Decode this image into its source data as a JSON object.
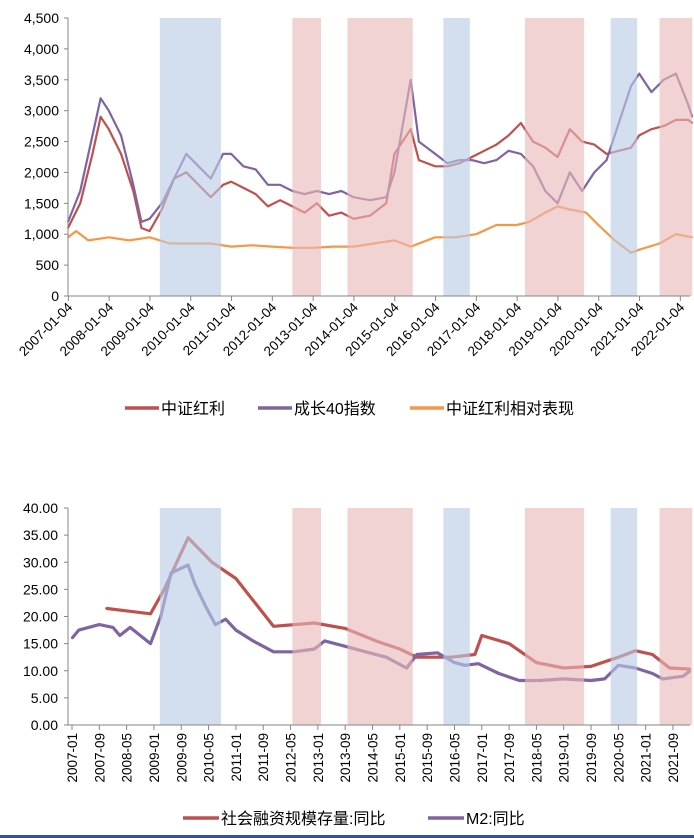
{
  "chart_data": [
    {
      "type": "line",
      "x_type": "date",
      "ylim": [
        0,
        4500
      ],
      "yticks": [
        "0",
        "500",
        "1,000",
        "1,500",
        "2,000",
        "2,500",
        "3,000",
        "3,500",
        "4,000",
        "4,500"
      ],
      "xticks": [
        "2007-01-04",
        "2008-01-04",
        "2009-01-04",
        "2010-01-04",
        "2011-01-04",
        "2012-01-04",
        "2013-01-04",
        "2014-01-04",
        "2015-01-04",
        "2016-01-04",
        "2017-01-04",
        "2018-01-04",
        "2019-01-04",
        "2020-01-04",
        "2021-01-04",
        "2022-01-04"
      ],
      "grid": false,
      "legend": "bottom",
      "shaded_periods": [
        {
          "from": 2009.25,
          "to": 2010.75,
          "color": "#b8cce4"
        },
        {
          "from": 2012.5,
          "to": 2013.2,
          "color": "#e6b8b7"
        },
        {
          "from": 2013.85,
          "to": 2015.45,
          "color": "#e6b8b7"
        },
        {
          "from": 2016.2,
          "to": 2016.85,
          "color": "#b8cce4"
        },
        {
          "from": 2018.2,
          "to": 2019.65,
          "color": "#e6b8b7"
        },
        {
          "from": 2020.3,
          "to": 2020.95,
          "color": "#b8cce4"
        },
        {
          "from": 2021.5,
          "to": 2022.3,
          "color": "#e6b8b7"
        }
      ],
      "series": [
        {
          "name": "中证红利",
          "color": "#c0504d",
          "x": [
            2007.0,
            2007.3,
            2007.6,
            2007.8,
            2008.0,
            2008.3,
            2008.6,
            2008.8,
            2009.0,
            2009.3,
            2009.6,
            2009.9,
            2010.2,
            2010.5,
            2010.8,
            2011.0,
            2011.3,
            2011.6,
            2011.9,
            2012.2,
            2012.5,
            2012.8,
            2013.1,
            2013.4,
            2013.7,
            2014.0,
            2014.4,
            2014.8,
            2015.0,
            2015.4,
            2015.6,
            2016.0,
            2016.3,
            2016.6,
            2016.9,
            2017.2,
            2017.5,
            2017.8,
            2018.1,
            2018.4,
            2018.7,
            2019.0,
            2019.3,
            2019.6,
            2019.9,
            2020.2,
            2020.5,
            2020.8,
            2021.0,
            2021.3,
            2021.6,
            2021.9,
            2022.2,
            2022.3
          ],
          "y": [
            1100,
            1500,
            2300,
            2900,
            2700,
            2300,
            1700,
            1100,
            1050,
            1400,
            1900,
            2000,
            1800,
            1600,
            1800,
            1850,
            1750,
            1650,
            1450,
            1550,
            1450,
            1350,
            1500,
            1300,
            1350,
            1250,
            1300,
            1500,
            2300,
            2700,
            2200,
            2100,
            2100,
            2150,
            2250,
            2350,
            2450,
            2600,
            2800,
            2500,
            2400,
            2250,
            2700,
            2500,
            2450,
            2300,
            2350,
            2400,
            2600,
            2700,
            2750,
            2850,
            2850,
            2800
          ]
        },
        {
          "name": "成长40指数",
          "color": "#8064a2",
          "x": [
            2007.0,
            2007.3,
            2007.6,
            2007.8,
            2008.0,
            2008.3,
            2008.6,
            2008.8,
            2009.0,
            2009.3,
            2009.6,
            2009.9,
            2010.2,
            2010.5,
            2010.8,
            2011.0,
            2011.3,
            2011.6,
            2011.9,
            2012.2,
            2012.5,
            2012.8,
            2013.1,
            2013.4,
            2013.7,
            2014.0,
            2014.4,
            2014.8,
            2015.0,
            2015.4,
            2015.6,
            2016.0,
            2016.3,
            2016.6,
            2016.9,
            2017.2,
            2017.5,
            2017.8,
            2018.1,
            2018.4,
            2018.7,
            2019.0,
            2019.3,
            2019.6,
            2019.9,
            2020.2,
            2020.5,
            2020.8,
            2021.0,
            2021.3,
            2021.6,
            2021.9,
            2022.2,
            2022.3
          ],
          "y": [
            1200,
            1700,
            2600,
            3200,
            3000,
            2600,
            1800,
            1200,
            1250,
            1500,
            1900,
            2300,
            2100,
            1900,
            2300,
            2300,
            2100,
            2050,
            1800,
            1800,
            1700,
            1650,
            1700,
            1650,
            1700,
            1600,
            1550,
            1600,
            2000,
            3500,
            2500,
            2300,
            2150,
            2200,
            2200,
            2150,
            2200,
            2350,
            2300,
            2100,
            1700,
            1500,
            2000,
            1700,
            2000,
            2200,
            2800,
            3400,
            3600,
            3300,
            3500,
            3600,
            3100,
            2900
          ]
        },
        {
          "name": "中证红利相对表现",
          "color": "#f79646",
          "x": [
            2007.0,
            2007.2,
            2007.5,
            2008.0,
            2008.5,
            2009.0,
            2009.5,
            2010.0,
            2010.5,
            2011.0,
            2011.5,
            2012.0,
            2012.5,
            2013.0,
            2013.5,
            2014.0,
            2014.5,
            2015.0,
            2015.4,
            2016.0,
            2016.5,
            2017.0,
            2017.5,
            2018.0,
            2018.3,
            2018.7,
            2019.0,
            2019.3,
            2019.7,
            2020.0,
            2020.4,
            2020.8,
            2021.0,
            2021.5,
            2021.9,
            2022.3
          ],
          "y": [
            950,
            1050,
            900,
            950,
            900,
            950,
            850,
            850,
            850,
            800,
            820,
            800,
            780,
            780,
            800,
            800,
            850,
            900,
            800,
            950,
            950,
            1000,
            1150,
            1150,
            1200,
            1350,
            1450,
            1400,
            1350,
            1150,
            900,
            700,
            750,
            850,
            1000,
            950
          ]
        }
      ]
    },
    {
      "type": "line",
      "x_type": "month",
      "ylim": [
        0,
        40
      ],
      "yticks": [
        "0.00",
        "5.00",
        "10.00",
        "15.00",
        "20.00",
        "25.00",
        "30.00",
        "35.00",
        "40.00"
      ],
      "xticks": [
        "2007-01",
        "2007-09",
        "2008-05",
        "2009-01",
        "2009-09",
        "2010-05",
        "2011-01",
        "2011-09",
        "2012-05",
        "2013-01",
        "2013-09",
        "2014-05",
        "2015-01",
        "2015-09",
        "2016-05",
        "2017-01",
        "2017-09",
        "2018-05",
        "2019-01",
        "2019-09",
        "2020-05",
        "2021-01",
        "2021-09"
      ],
      "grid": false,
      "legend": "bottom",
      "series": [
        {
          "name": "社会融资规模存量:同比",
          "color": "#c0504d",
          "x": [
            "2007-11",
            "2008-12",
            "2009-04",
            "2009-11",
            "2010-06",
            "2011-01",
            "2011-12",
            "2012-12",
            "2013-09",
            "2014-06",
            "2015-01",
            "2015-06",
            "2016-04",
            "2016-11",
            "2017-01",
            "2017-09",
            "2018-05",
            "2019-01",
            "2019-09",
            "2020-05",
            "2020-10",
            "2021-03",
            "2021-08",
            "2022-02"
          ],
          "y": [
            21.5,
            20.5,
            25,
            34.5,
            30,
            27,
            18.2,
            18.8,
            17.8,
            15.5,
            14,
            12.5,
            12.5,
            13,
            16.5,
            15,
            11.5,
            10.5,
            10.8,
            12.5,
            13.7,
            13,
            10.5,
            10.3
          ]
        },
        {
          "name": "M2:同比",
          "color": "#8064a2",
          "x": [
            "2007-01",
            "2007-03",
            "2007-09",
            "2008-01",
            "2008-03",
            "2008-06",
            "2008-12",
            "2009-03",
            "2009-06",
            "2009-11",
            "2010-01",
            "2010-04",
            "2010-07",
            "2010-10",
            "2011-01",
            "2011-06",
            "2011-12",
            "2012-06",
            "2012-12",
            "2013-03",
            "2013-09",
            "2014-03",
            "2014-09",
            "2015-03",
            "2015-06",
            "2015-12",
            "2016-05",
            "2016-08",
            "2016-12",
            "2017-06",
            "2017-12",
            "2018-06",
            "2019-01",
            "2019-09",
            "2020-01",
            "2020-05",
            "2020-10",
            "2021-03",
            "2021-06",
            "2021-12",
            "2022-02"
          ],
          "y": [
            16,
            17.5,
            18.5,
            18,
            16.5,
            18,
            15,
            20,
            28,
            29.5,
            26,
            22,
            18.5,
            19.5,
            17.5,
            15.5,
            13.5,
            13.5,
            14,
            15.5,
            14.5,
            13.5,
            12.5,
            10.5,
            13,
            13.3,
            11.5,
            11,
            11.3,
            9.5,
            8.2,
            8.2,
            8.5,
            8.2,
            8.5,
            11,
            10.5,
            9.5,
            8.5,
            9,
            10
          ]
        }
      ]
    }
  ]
}
